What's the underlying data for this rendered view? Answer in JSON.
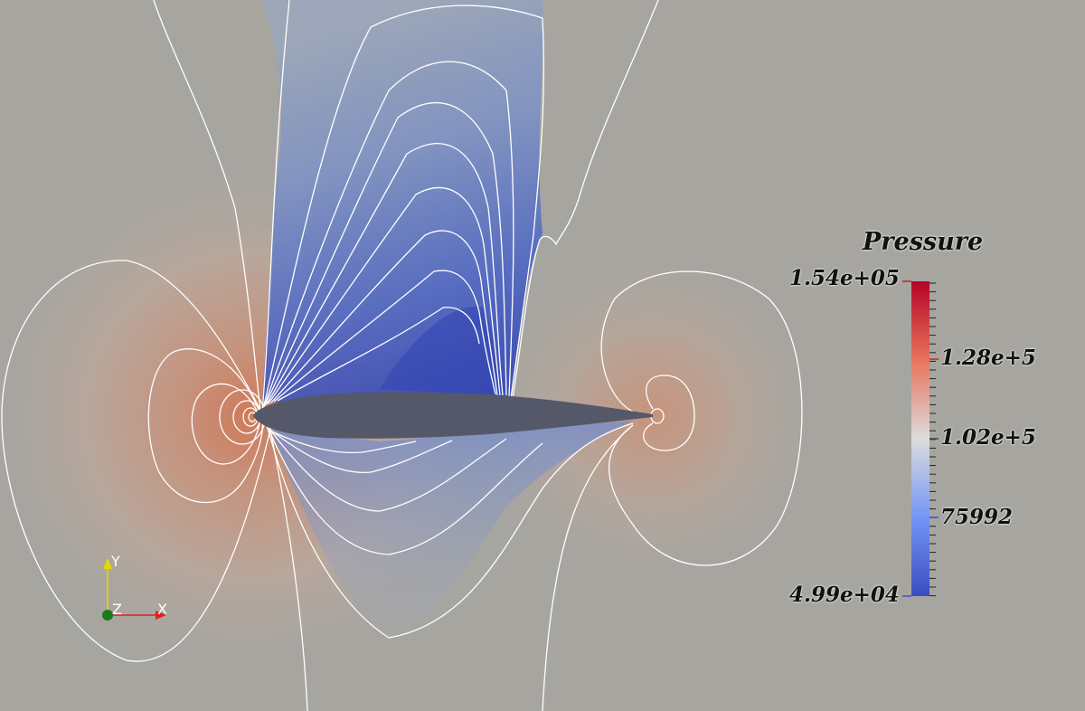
{
  "legend": {
    "title": "Pressure",
    "max_label": "1.54e+05",
    "min_label": "4.99e+04",
    "tick_labels": [
      "1.28e+5",
      "1.02e+5",
      "75992"
    ],
    "colormap": [
      "#b40426",
      "#e7745b",
      "#dddddd",
      "#7396f5",
      "#3b4cc0"
    ]
  },
  "orientation_axes": {
    "x_label": "X",
    "y_label": "Y",
    "z_label": "Z",
    "x_color": "#e02020",
    "y_color": "#e8d800",
    "z_color": "#1a7a1a"
  },
  "colors": {
    "background": "#a7a5a0",
    "airfoil": "#555869",
    "contour_line": "#ffffff"
  }
}
